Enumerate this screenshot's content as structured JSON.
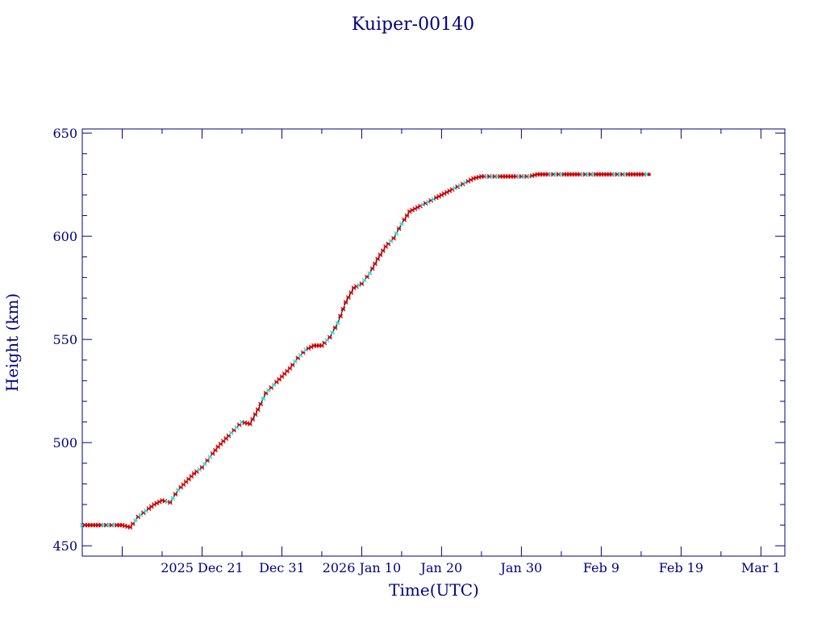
{
  "chart_data": {
    "type": "scatter",
    "title": "Kuiper-00140",
    "xlabel": "Time(UTC)",
    "ylabel": "Height (km)",
    "xlim": [
      "2025-12-06",
      "2026-03-04"
    ],
    "ylim": [
      445,
      652
    ],
    "y_ticks": [
      450,
      500,
      550,
      600,
      650
    ],
    "x_ticks": [
      {
        "label": "2025 Dec 21 ",
        "date": "2025-12-21"
      },
      {
        "label": "Dec 31",
        "date": "2025-12-31"
      },
      {
        "label": "2026 Jan 10",
        "date": "2026-01-10"
      },
      {
        "label": "Jan 20",
        "date": "2026-01-20"
      },
      {
        "label": "Jan 30",
        "date": "2026-01-30"
      },
      {
        "label": "Feb  9",
        "date": "2026-02-09"
      },
      {
        "label": "Feb 19",
        "date": "2026-02-19"
      },
      {
        "label": "Mar  1",
        "date": "2026-03-01"
      }
    ],
    "grid": false,
    "colors": {
      "axis": "#000080",
      "text": "#000080",
      "line": "#000000",
      "marker_primary": "#cc0000",
      "marker_secondary": "#33dddd"
    },
    "series": [
      {
        "x": [
          "2025-12-06",
          "2025-12-07",
          "2025-12-08",
          "2025-12-09",
          "2025-12-10",
          "2025-12-11",
          "2025-12-12",
          "2025-12-13",
          "2025-12-14",
          "2025-12-15",
          "2025-12-16",
          "2025-12-17",
          "2025-12-18",
          "2025-12-19",
          "2025-12-20",
          "2025-12-21",
          "2025-12-22",
          "2025-12-23",
          "2025-12-24",
          "2025-12-25",
          "2025-12-26",
          "2025-12-27",
          "2025-12-28",
          "2025-12-29",
          "2025-12-30",
          "2025-12-31",
          "2026-01-01",
          "2026-01-02",
          "2026-01-03",
          "2026-01-04",
          "2026-01-05",
          "2026-01-06",
          "2026-01-07",
          "2026-01-08",
          "2026-01-09",
          "2026-01-10",
          "2026-01-11",
          "2026-01-12",
          "2026-01-13",
          "2026-01-14",
          "2026-01-15",
          "2026-01-16",
          "2026-01-17",
          "2026-01-18",
          "2026-01-19",
          "2026-01-20",
          "2026-01-21",
          "2026-01-22",
          "2026-01-23",
          "2026-01-24",
          "2026-01-25",
          "2026-01-26",
          "2026-01-27",
          "2026-01-28",
          "2026-01-29",
          "2026-01-30",
          "2026-01-31",
          "2026-02-01",
          "2026-02-02",
          "2026-02-03",
          "2026-02-04",
          "2026-02-05",
          "2026-02-06",
          "2026-02-07",
          "2026-02-08",
          "2026-02-09",
          "2026-02-10",
          "2026-02-11",
          "2026-02-12",
          "2026-02-13",
          "2026-02-14",
          "2026-02-15"
        ],
        "y": [
          460,
          460,
          460,
          460,
          460,
          460,
          459,
          464,
          467,
          470,
          472,
          471,
          477,
          481,
          485,
          488,
          493,
          498,
          502,
          506,
          510,
          509,
          516,
          524,
          528,
          532,
          536,
          541,
          545,
          547,
          547,
          551,
          558,
          568,
          575,
          577,
          582,
          589,
          595,
          599,
          606,
          612,
          614,
          616,
          618,
          620,
          622,
          624,
          626,
          628,
          629,
          629,
          629,
          629,
          629,
          629,
          629,
          630,
          630,
          630,
          630,
          630,
          630,
          630,
          630,
          630,
          630,
          630,
          630,
          630,
          630,
          630
        ]
      }
    ]
  }
}
